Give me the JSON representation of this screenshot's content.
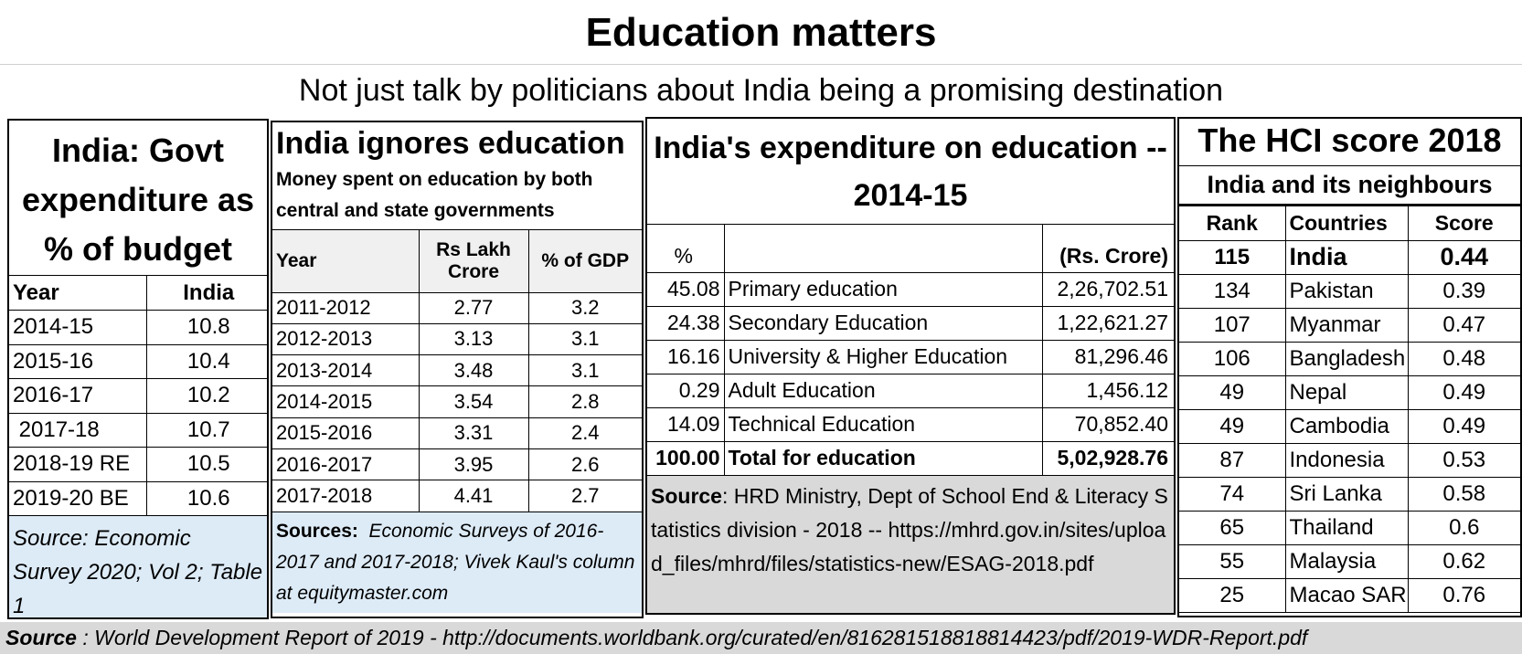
{
  "title": "Education matters",
  "subtitle": "Not just talk by politicians about India being a promising destination",
  "panel1": {
    "heading": "India: Govt expenditure as % of budget",
    "columns": [
      "Year",
      "India"
    ],
    "rows": [
      {
        "year": "2014-15",
        "value": "10.8"
      },
      {
        "year": "2015-16",
        "value": "10.4"
      },
      {
        "year": "2016-17",
        "value": "10.2"
      },
      {
        "year": " 2017-18",
        "value": "10.7"
      },
      {
        "year": "2018-19 RE",
        "value": "10.5"
      },
      {
        "year": "2019-20 BE",
        "value": "10.6"
      }
    ],
    "source": "Source: Economic Survey 2020; Vol 2; Table 1"
  },
  "panel2": {
    "heading": "India ignores education",
    "subheading": "Money spent on education by both central and state governments",
    "columns": [
      "Year",
      "Rs Lakh Crore",
      "% of GDP"
    ],
    "rows": [
      {
        "year": "2011-2012",
        "crore": "2.77",
        "gdp": "3.2"
      },
      {
        "year": "2012-2013",
        "crore": "3.13",
        "gdp": "3.1"
      },
      {
        "year": "2013-2014",
        "crore": "3.48",
        "gdp": "3.1"
      },
      {
        "year": "2014-2015",
        "crore": "3.54",
        "gdp": "2.8"
      },
      {
        "year": "2015-2016",
        "crore": "3.31",
        "gdp": "2.4"
      },
      {
        "year": "2016-2017",
        "crore": "3.95",
        "gdp": "2.6"
      },
      {
        "year": "2017-2018",
        "crore": "4.41",
        "gdp": "2.7"
      }
    ],
    "source_label": "Sources:",
    "source_text": "  Economic Surveys of 2016-2017 and 2017-2018; Vivek Kaul's column at equitymaster.com"
  },
  "panel3": {
    "heading": "India's expenditure on education -- 2014-15",
    "columns": [
      "%",
      "",
      "(Rs. Crore)"
    ],
    "rows": [
      {
        "pct": "45.08",
        "item": "Primary education",
        "amount": "2,26,702.51"
      },
      {
        "pct": "24.38",
        "item": "Secondary Education",
        "amount": "1,22,621.27"
      },
      {
        "pct": "16.16",
        "item": "University & Higher Education",
        "amount": "81,296.46"
      },
      {
        "pct": "0.29",
        "item": "Adult Education",
        "amount": "1,456.12"
      },
      {
        "pct": "14.09",
        "item": "Technical Education",
        "amount": "70,852.40"
      }
    ],
    "total": {
      "pct": "100.00",
      "item": "Total for education",
      "amount": "5,02,928.76"
    },
    "source_label": "Source",
    "source_text": ": HRD Ministry, Dept of School End & Literacy Statistics division - 2018 -- https://mhrd.gov.in/sites/upload_files/mhrd/files/statistics-new/ESAG-2018.pdf"
  },
  "panel4": {
    "heading": "The HCI score 2018",
    "subheading": "India and its neighbours",
    "columns": [
      "Rank",
      "Countries",
      "Score"
    ],
    "highlight": {
      "rank": "115",
      "country": "India",
      "score": "0.44"
    },
    "rows": [
      {
        "rank": "134",
        "country": "Pakistan",
        "score": "0.39"
      },
      {
        "rank": "107",
        "country": "Myanmar",
        "score": "0.47"
      },
      {
        "rank": "106",
        "country": "Bangladesh",
        "score": "0.48"
      },
      {
        "rank": "49",
        "country": "Nepal",
        "score": "0.49"
      },
      {
        "rank": "49",
        "country": "Cambodia",
        "score": "0.49"
      },
      {
        "rank": "87",
        "country": "Indonesia",
        "score": "0.53"
      },
      {
        "rank": "74",
        "country": "Sri Lanka",
        "score": "0.58"
      },
      {
        "rank": "65",
        "country": "Thailand",
        "score": "0.6"
      },
      {
        "rank": "55",
        "country": "Malaysia",
        "score": "0.62"
      },
      {
        "rank": "25",
        "country": "Macao SAR",
        "score": "0.76"
      }
    ]
  },
  "footer": {
    "label": "Source",
    "text": " : World Development Report of 2019 - http://documents.worldbank.org/curated/en/816281518818814423/pdf/2019-WDR-Report.pdf"
  }
}
